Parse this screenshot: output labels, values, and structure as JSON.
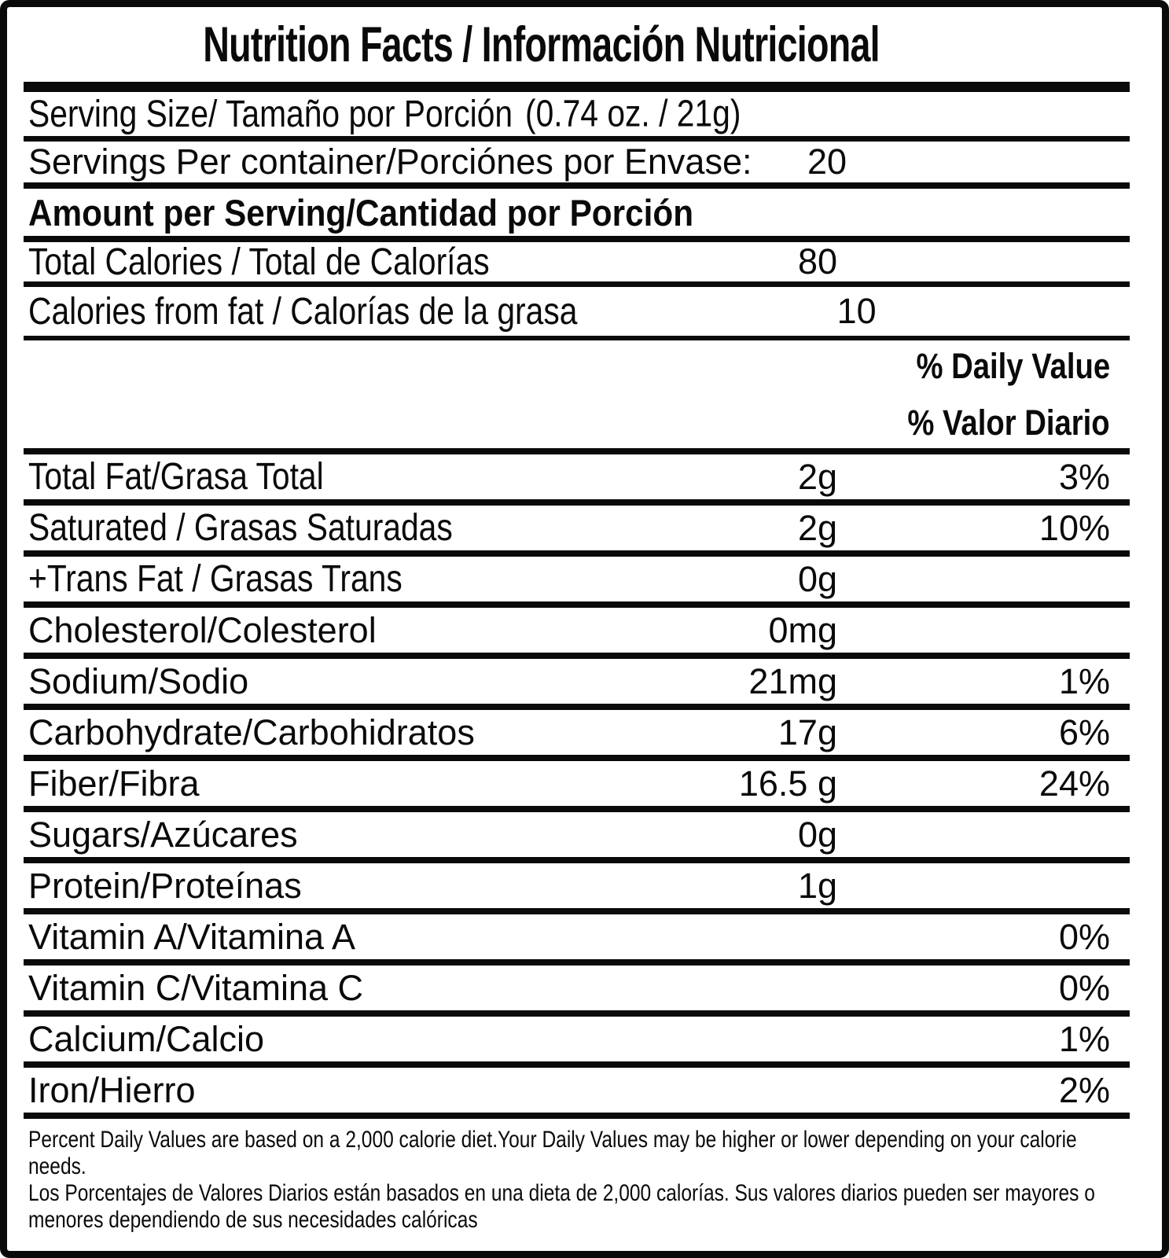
{
  "label": {
    "title": "Nutrition Facts / Información Nutricional",
    "serving_size": {
      "label": "Serving Size/ Tamaño por Porción",
      "value": "(0.74 oz. / 21g)"
    },
    "servings_per_container": {
      "label": "Servings Per container/Porciónes por Envase:",
      "value": "20"
    },
    "amount_header": "Amount per Serving/Cantidad por Porción",
    "calories_rows": [
      {
        "label": "Total Calories / Total de Calorías",
        "value": "80"
      },
      {
        "label": "Calories from fat / Calorías de la grasa",
        "value": "10"
      }
    ],
    "daily_value_header": {
      "line1": "% Daily Value",
      "line2": "% Valor Diario"
    },
    "nutrient_rows": [
      {
        "label": "Total Fat/Grasa Total",
        "value": "2g",
        "dv": "3%"
      },
      {
        "label": "Saturated / Grasas Saturadas",
        "value": "2g",
        "dv": "10%"
      },
      {
        "label": "+Trans Fat / Grasas Trans",
        "value": "0g",
        "dv": ""
      },
      {
        "label": "Cholesterol/Colesterol",
        "value": "0mg",
        "dv": ""
      },
      {
        "label": "Sodium/Sodio",
        "value": "21mg",
        "dv": "1%"
      },
      {
        "label": "Carbohydrate/Carbohidratos",
        "value": "17g",
        "dv": "6%"
      },
      {
        "label": "Fiber/Fibra",
        "value": "16.5 g",
        "dv": "24%"
      },
      {
        "label": "Sugars/Azúcares",
        "value": "0g",
        "dv": ""
      },
      {
        "label": "Protein/Proteínas",
        "value": "1g",
        "dv": ""
      },
      {
        "label": "Vitamin A/Vitamina A",
        "value": "",
        "dv": "0%"
      },
      {
        "label": "Vitamin C/Vitamina C",
        "value": "",
        "dv": "0%"
      },
      {
        "label": "Calcium/Calcio",
        "value": "",
        "dv": "1%"
      },
      {
        "label": "Iron/Hierro",
        "value": "",
        "dv": "2%"
      }
    ],
    "footnote_en": "Percent Daily Values are based on a 2,000 calorie diet.Your Daily Values may be higher or lower depending on your calorie needs.",
    "footnote_es": "Los Porcentajes de Valores Diarios están basados en una dieta de 2,000 calorías. Sus valores diarios pueden ser mayores o menores dependiendo de sus necesidades calóricas"
  },
  "colors": {
    "ink": "#0a0a0a",
    "paper": "#ffffff"
  }
}
